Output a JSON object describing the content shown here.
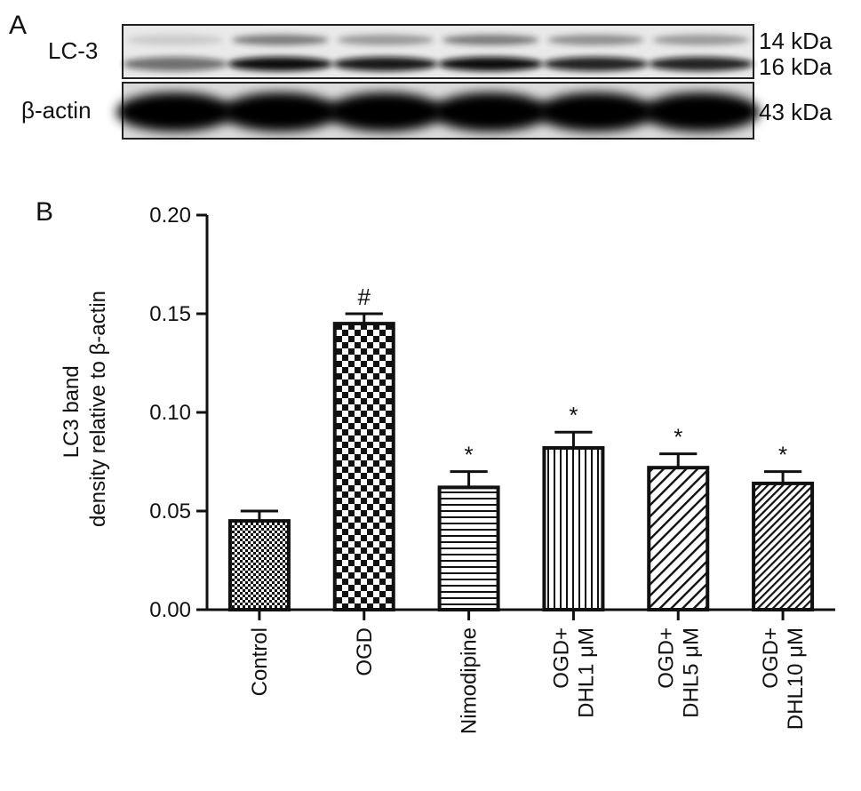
{
  "panel_a": {
    "letter": "A",
    "lanes": 6,
    "rows": [
      {
        "label": "LC-3",
        "markers": [
          "14 kDa",
          "16 kDa"
        ]
      },
      {
        "label": "β-actin",
        "markers": [
          "43 kDa"
        ]
      }
    ]
  },
  "panel_b": {
    "letter": "B"
  },
  "chart_data": {
    "type": "bar",
    "title": "",
    "ylabel_lines": [
      "LC3 band",
      "density relative to β-actin"
    ],
    "xlabel": "",
    "ylim": [
      0,
      0.2
    ],
    "yticks": [
      "0.00",
      "0.05",
      "0.10",
      "0.15",
      "0.20"
    ],
    "grid": false,
    "legend": "none",
    "categories": [
      {
        "lines": [
          "Control"
        ]
      },
      {
        "lines": [
          "OGD"
        ]
      },
      {
        "lines": [
          "Nimodipine"
        ]
      },
      {
        "lines": [
          "OGD+",
          "DHL1 μM"
        ]
      },
      {
        "lines": [
          "OGD+",
          "DHL5 μM"
        ]
      },
      {
        "lines": [
          "OGD+",
          "DHL10 μM"
        ]
      }
    ],
    "values": [
      0.045,
      0.145,
      0.062,
      0.082,
      0.072,
      0.064
    ],
    "errors": [
      0.005,
      0.005,
      0.008,
      0.008,
      0.007,
      0.006
    ],
    "markers": [
      "",
      "#",
      "*",
      "*",
      "*",
      "*"
    ],
    "patterns": [
      "fine-check",
      "checkerboard",
      "horizontal",
      "vertical",
      "diagonal-wide",
      "diagonal-dense"
    ]
  }
}
